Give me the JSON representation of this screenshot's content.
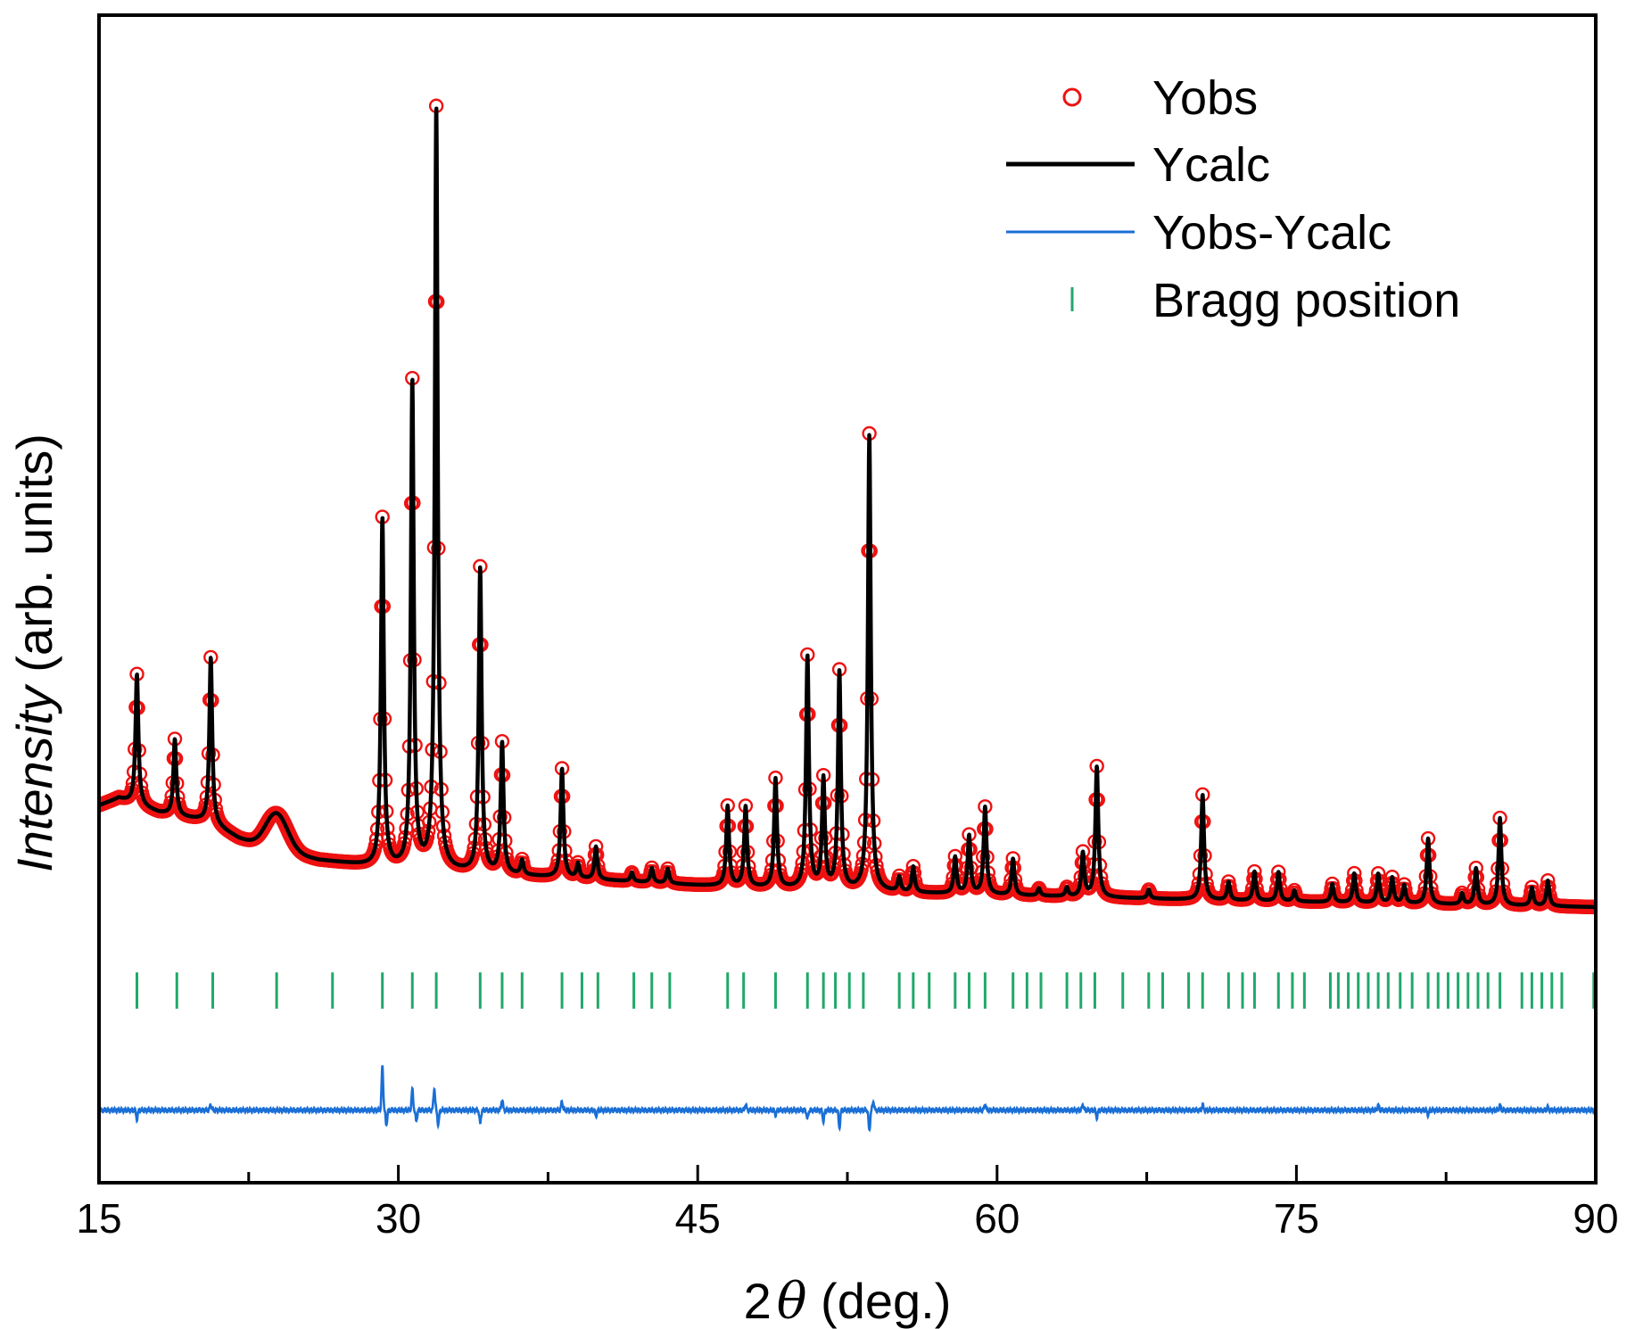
{
  "chart_data": {
    "type": "line",
    "title": "",
    "xlabel_prefix": "2",
    "xlabel_symbol": "θ",
    "xlabel_suffix": " (deg.)",
    "ylabel_italic": "Intensity",
    "ylabel_suffix": " (arb. units)",
    "xlim": [
      15,
      90
    ],
    "ylim": [
      -0.35,
      1.26
    ],
    "x_ticks": [
      15,
      30,
      45,
      60,
      75,
      90
    ],
    "x_tick_labels": [
      "15",
      "30",
      "45",
      "60",
      "75",
      "90"
    ],
    "x_minor_step": 7.5,
    "y_ticks_visible": false,
    "legend_position": "top-right",
    "background": {
      "points": [
        [
          15,
          0.17
        ],
        [
          16,
          0.18
        ],
        [
          17,
          0.17
        ],
        [
          18,
          0.16
        ],
        [
          19,
          0.155
        ],
        [
          20,
          0.15
        ],
        [
          21,
          0.14
        ],
        [
          22,
          0.125
        ],
        [
          23,
          0.115
        ],
        [
          26,
          0.095
        ],
        [
          29,
          0.085
        ],
        [
          35,
          0.075
        ],
        [
          45,
          0.06
        ],
        [
          55,
          0.05
        ],
        [
          70,
          0.04
        ],
        [
          80,
          0.035
        ],
        [
          90,
          0.03
        ]
      ]
    },
    "humps": [
      {
        "center": 23.9,
        "height": 0.05,
        "width": 0.55
      }
    ],
    "peaks": [
      {
        "x": 16.9,
        "h": 0.18
      },
      {
        "x": 18.8,
        "h": 0.105
      },
      {
        "x": 20.6,
        "h": 0.23
      },
      {
        "x": 29.2,
        "h": 0.48
      },
      {
        "x": 30.7,
        "h": 0.67
      },
      {
        "x": 31.9,
        "h": 1.05
      },
      {
        "x": 34.1,
        "h": 0.42
      },
      {
        "x": 35.2,
        "h": 0.18
      },
      {
        "x": 36.2,
        "h": 0.02
      },
      {
        "x": 38.2,
        "h": 0.15
      },
      {
        "x": 39.0,
        "h": 0.02
      },
      {
        "x": 39.9,
        "h": 0.045
      },
      {
        "x": 41.7,
        "h": 0.012
      },
      {
        "x": 42.7,
        "h": 0.02
      },
      {
        "x": 43.5,
        "h": 0.02
      },
      {
        "x": 46.5,
        "h": 0.11
      },
      {
        "x": 47.4,
        "h": 0.11
      },
      {
        "x": 48.9,
        "h": 0.15
      },
      {
        "x": 50.5,
        "h": 0.32
      },
      {
        "x": 51.3,
        "h": 0.15
      },
      {
        "x": 52.1,
        "h": 0.3
      },
      {
        "x": 53.6,
        "h": 0.63
      },
      {
        "x": 55.1,
        "h": 0.02
      },
      {
        "x": 55.8,
        "h": 0.035
      },
      {
        "x": 57.9,
        "h": 0.05
      },
      {
        "x": 58.6,
        "h": 0.08
      },
      {
        "x": 59.4,
        "h": 0.12
      },
      {
        "x": 60.8,
        "h": 0.05
      },
      {
        "x": 62.1,
        "h": 0.01
      },
      {
        "x": 63.5,
        "h": 0.012
      },
      {
        "x": 64.3,
        "h": 0.06
      },
      {
        "x": 65.0,
        "h": 0.18
      },
      {
        "x": 67.6,
        "h": 0.012
      },
      {
        "x": 70.3,
        "h": 0.145
      },
      {
        "x": 71.6,
        "h": 0.025
      },
      {
        "x": 72.9,
        "h": 0.04
      },
      {
        "x": 74.1,
        "h": 0.04
      },
      {
        "x": 74.9,
        "h": 0.015
      },
      {
        "x": 76.8,
        "h": 0.025
      },
      {
        "x": 77.9,
        "h": 0.04
      },
      {
        "x": 79.1,
        "h": 0.04
      },
      {
        "x": 79.8,
        "h": 0.035
      },
      {
        "x": 80.4,
        "h": 0.025
      },
      {
        "x": 81.6,
        "h": 0.09
      },
      {
        "x": 83.3,
        "h": 0.015
      },
      {
        "x": 84.0,
        "h": 0.05
      },
      {
        "x": 85.2,
        "h": 0.12
      },
      {
        "x": 86.8,
        "h": 0.025
      },
      {
        "x": 87.6,
        "h": 0.035
      }
    ],
    "bragg_positions": [
      16.9,
      18.9,
      20.7,
      23.9,
      26.7,
      29.2,
      30.7,
      31.9,
      34.1,
      35.2,
      36.2,
      38.2,
      39.2,
      40.0,
      41.8,
      42.7,
      43.6,
      46.5,
      47.3,
      48.9,
      50.5,
      51.3,
      51.9,
      52.6,
      53.3,
      55.1,
      55.8,
      56.6,
      57.9,
      58.6,
      59.4,
      60.8,
      61.5,
      62.2,
      63.5,
      64.2,
      64.9,
      66.3,
      67.6,
      68.3,
      69.6,
      70.3,
      71.6,
      72.3,
      72.9,
      74.1,
      74.8,
      75.4,
      76.7,
      77.1,
      77.6,
      78.1,
      78.6,
      79.1,
      79.6,
      80.2,
      80.8,
      81.6,
      82.1,
      82.6,
      83.1,
      83.6,
      84.1,
      84.6,
      85.2,
      86.3,
      86.8,
      87.3,
      87.8,
      88.3,
      89.9
    ],
    "bragg_tick_y": [
      -0.06,
      -0.11
    ],
    "difference_baseline": -0.25,
    "difference_spikes": [
      {
        "x": 16.9,
        "d": -0.012
      },
      {
        "x": 20.6,
        "d": 0.008
      },
      {
        "x": 29.2,
        "d": 0.06
      },
      {
        "x": 29.4,
        "d": -0.02
      },
      {
        "x": 30.7,
        "d": 0.028
      },
      {
        "x": 30.9,
        "d": -0.015
      },
      {
        "x": 31.8,
        "d": 0.03
      },
      {
        "x": 32.0,
        "d": -0.02
      },
      {
        "x": 34.1,
        "d": -0.018
      },
      {
        "x": 35.2,
        "d": 0.015
      },
      {
        "x": 38.2,
        "d": 0.012
      },
      {
        "x": 39.9,
        "d": -0.008
      },
      {
        "x": 47.4,
        "d": 0.008
      },
      {
        "x": 48.9,
        "d": -0.006
      },
      {
        "x": 50.5,
        "d": -0.012
      },
      {
        "x": 51.3,
        "d": -0.015
      },
      {
        "x": 52.1,
        "d": -0.024
      },
      {
        "x": 53.6,
        "d": -0.028
      },
      {
        "x": 53.8,
        "d": 0.012
      },
      {
        "x": 59.4,
        "d": 0.008
      },
      {
        "x": 64.3,
        "d": 0.008
      },
      {
        "x": 65.0,
        "d": -0.01
      },
      {
        "x": 70.3,
        "d": 0.007
      },
      {
        "x": 79.1,
        "d": 0.007
      },
      {
        "x": 81.6,
        "d": -0.006
      },
      {
        "x": 85.2,
        "d": 0.007
      },
      {
        "x": 87.6,
        "d": 0.004
      }
    ],
    "series": [
      {
        "name": "Yobs",
        "style": "open-circle",
        "color": "#ee1111"
      },
      {
        "name": "Ycalc",
        "style": "line",
        "color": "#000000"
      },
      {
        "name": "Yobs-Ycalc",
        "style": "line",
        "color": "#1a6fd6"
      },
      {
        "name": "Bragg position",
        "style": "tick",
        "color": "#20a86a"
      }
    ]
  }
}
